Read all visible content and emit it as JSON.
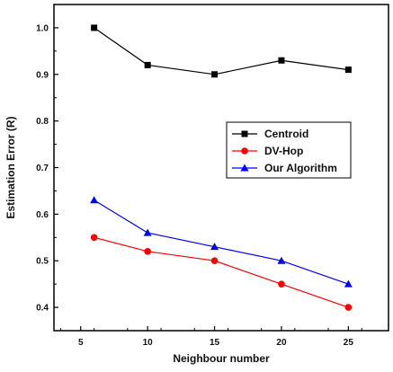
{
  "chart_data": {
    "type": "line",
    "x": [
      6,
      10,
      15,
      20,
      25
    ],
    "xlabel": "Neighbour number",
    "ylabel": "Estimation Error (R)",
    "xlim": [
      3,
      28
    ],
    "ylim": [
      0.35,
      1.05
    ],
    "xticks": [
      5,
      10,
      15,
      20,
      25
    ],
    "yticks": [
      0.4,
      0.5,
      0.6,
      0.7,
      0.8,
      0.9,
      1.0
    ],
    "xtick_labels": [
      "5",
      "10",
      "15",
      "20",
      "25"
    ],
    "ytick_labels": [
      "0.4",
      "0.5",
      "0.6",
      "0.7",
      "0.8",
      "0.9",
      "1.0"
    ],
    "grid": false,
    "legend_position": "center-right",
    "series": [
      {
        "name": "Centroid",
        "values": [
          1.0,
          0.92,
          0.9,
          0.93,
          0.91
        ],
        "color": "#000000",
        "marker": "square"
      },
      {
        "name": "DV-Hop",
        "values": [
          0.55,
          0.52,
          0.5,
          0.45,
          0.4
        ],
        "color": "#ff0000",
        "marker": "circle"
      },
      {
        "name": "Our Algorithm",
        "values": [
          0.63,
          0.56,
          0.53,
          0.5,
          0.45
        ],
        "color": "#0000ff",
        "marker": "triangle"
      }
    ]
  }
}
